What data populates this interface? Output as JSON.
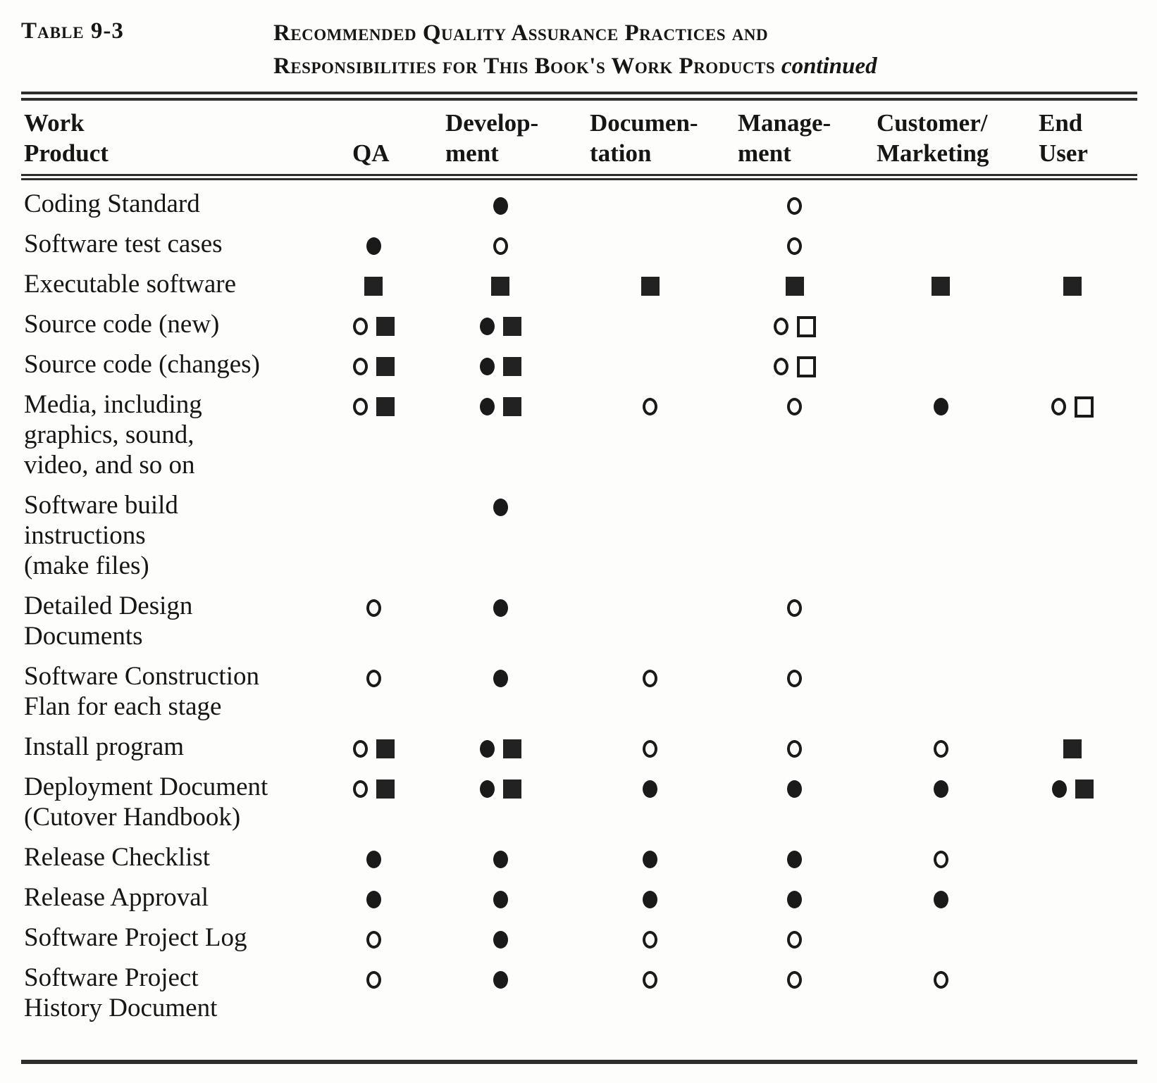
{
  "caption": {
    "label": "Table 9-3",
    "title_line1": "Recommended Quality Assurance Practices and",
    "title_line2": "Responsibilities for This Book's Work Products",
    "title_continued": "continued"
  },
  "symbol_glyphs": {
    "filled-circle": "●",
    "open-circle": "○",
    "filled-square": "■",
    "open-square": "□"
  },
  "colors": {
    "ink": "#161616",
    "rule": "#2e2e2e",
    "paper": "#fdfdfc"
  },
  "table": {
    "columns": [
      {
        "id": "work_product",
        "line1": "Work",
        "line2": "Product"
      },
      {
        "id": "qa",
        "line1": "",
        "line2": "QA"
      },
      {
        "id": "development",
        "line1": "Develop-",
        "line2": "ment"
      },
      {
        "id": "documentation",
        "line1": "Documen-",
        "line2": "tation"
      },
      {
        "id": "management",
        "line1": "Manage-",
        "line2": "ment"
      },
      {
        "id": "customer_marketing",
        "line1": "Customer/",
        "line2": "Marketing"
      },
      {
        "id": "end_user",
        "line1": "End",
        "line2": "User"
      }
    ],
    "rows": [
      {
        "work_product": [
          "Coding Standard"
        ],
        "qa": [],
        "development": [
          "filled-circle"
        ],
        "documentation": [],
        "management": [
          "open-circle"
        ],
        "customer_marketing": [],
        "end_user": []
      },
      {
        "work_product": [
          "Software test cases"
        ],
        "qa": [
          "filled-circle"
        ],
        "development": [
          "open-circle"
        ],
        "documentation": [],
        "management": [
          "open-circle"
        ],
        "customer_marketing": [],
        "end_user": []
      },
      {
        "work_product": [
          "Executable software"
        ],
        "qa": [
          "filled-square"
        ],
        "development": [
          "filled-square"
        ],
        "documentation": [
          "filled-square"
        ],
        "management": [
          "filled-square"
        ],
        "customer_marketing": [
          "filled-square"
        ],
        "end_user": [
          "filled-square"
        ]
      },
      {
        "work_product": [
          "Source code (new)"
        ],
        "qa": [
          "open-circle",
          "filled-square"
        ],
        "development": [
          "filled-circle",
          "filled-square"
        ],
        "documentation": [],
        "management": [
          "open-circle",
          "open-square"
        ],
        "customer_marketing": [],
        "end_user": []
      },
      {
        "work_product": [
          "Source code (changes)"
        ],
        "qa": [
          "open-circle",
          "filled-square"
        ],
        "development": [
          "filled-circle",
          "filled-square"
        ],
        "documentation": [],
        "management": [
          "open-circle",
          "open-square"
        ],
        "customer_marketing": [],
        "end_user": []
      },
      {
        "work_product": [
          "Media, including",
          "graphics, sound,",
          "video, and so on"
        ],
        "qa": [
          "open-circle",
          "filled-square"
        ],
        "development": [
          "filled-circle",
          "filled-square"
        ],
        "documentation": [
          "open-circle"
        ],
        "management": [
          "open-circle"
        ],
        "customer_marketing": [
          "filled-circle"
        ],
        "end_user": [
          "open-circle",
          "open-square"
        ]
      },
      {
        "work_product": [
          "Software build",
          "instructions",
          "(make files)"
        ],
        "qa": [],
        "development": [
          "filled-circle"
        ],
        "documentation": [],
        "management": [],
        "customer_marketing": [],
        "end_user": []
      },
      {
        "work_product": [
          "Detailed Design",
          "Documents"
        ],
        "qa": [
          "open-circle"
        ],
        "development": [
          "filled-circle"
        ],
        "documentation": [],
        "management": [
          "open-circle"
        ],
        "customer_marketing": [],
        "end_user": []
      },
      {
        "work_product": [
          "Software Construction",
          "Flan for each stage"
        ],
        "qa": [
          "open-circle"
        ],
        "development": [
          "filled-circle"
        ],
        "documentation": [
          "open-circle"
        ],
        "management": [
          "open-circle"
        ],
        "customer_marketing": [],
        "end_user": []
      },
      {
        "work_product": [
          "Install program"
        ],
        "qa": [
          "open-circle",
          "filled-square"
        ],
        "development": [
          "filled-circle",
          "filled-square"
        ],
        "documentation": [
          "open-circle"
        ],
        "management": [
          "open-circle"
        ],
        "customer_marketing": [
          "open-circle"
        ],
        "end_user": [
          "filled-square"
        ]
      },
      {
        "work_product": [
          "Deployment Document",
          "(Cutover Handbook)"
        ],
        "qa": [
          "open-circle",
          "filled-square"
        ],
        "development": [
          "filled-circle",
          "filled-square"
        ],
        "documentation": [
          "filled-circle"
        ],
        "management": [
          "filled-circle"
        ],
        "customer_marketing": [
          "filled-circle"
        ],
        "end_user": [
          "filled-circle",
          "filled-square"
        ]
      },
      {
        "work_product": [
          "Release Checklist"
        ],
        "qa": [
          "filled-circle"
        ],
        "development": [
          "filled-circle"
        ],
        "documentation": [
          "filled-circle"
        ],
        "management": [
          "filled-circle"
        ],
        "customer_marketing": [
          "open-circle"
        ],
        "end_user": []
      },
      {
        "work_product": [
          "Release Approval"
        ],
        "qa": [
          "filled-circle"
        ],
        "development": [
          "filled-circle"
        ],
        "documentation": [
          "filled-circle"
        ],
        "management": [
          "filled-circle"
        ],
        "customer_marketing": [
          "filled-circle"
        ],
        "end_user": []
      },
      {
        "work_product": [
          "Software Project Log"
        ],
        "qa": [
          "open-circle"
        ],
        "development": [
          "filled-circle"
        ],
        "documentation": [
          "open-circle"
        ],
        "management": [
          "open-circle"
        ],
        "customer_marketing": [],
        "end_user": []
      },
      {
        "work_product": [
          "Software Project",
          "History Document"
        ],
        "qa": [
          "open-circle"
        ],
        "development": [
          "filled-circle"
        ],
        "documentation": [
          "open-circle"
        ],
        "management": [
          "open-circle"
        ],
        "customer_marketing": [
          "open-circle"
        ],
        "end_user": []
      }
    ]
  }
}
